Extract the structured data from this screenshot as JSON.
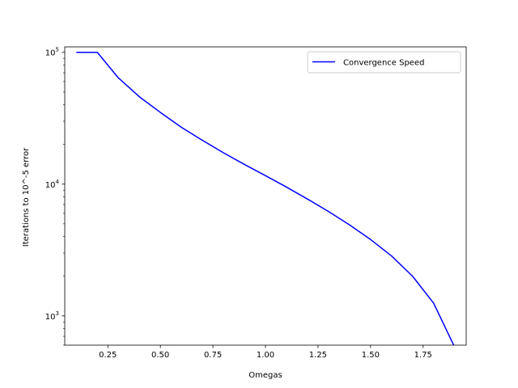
{
  "chart_data": {
    "type": "line",
    "title": "",
    "xlabel": "Omegas",
    "ylabel": "Iterations to 10^-5 error",
    "yscale": "log",
    "xlim": [
      0.045,
      1.955
    ],
    "ylim": [
      600,
      110000
    ],
    "x_ticks": [
      {
        "value": 0.25,
        "label": "0.25"
      },
      {
        "value": 0.5,
        "label": "0.50"
      },
      {
        "value": 0.75,
        "label": "0.75"
      },
      {
        "value": 1.0,
        "label": "1.00"
      },
      {
        "value": 1.25,
        "label": "1.25"
      },
      {
        "value": 1.5,
        "label": "1.50"
      },
      {
        "value": 1.75,
        "label": "1.75"
      }
    ],
    "y_ticks": [
      {
        "value": 1000,
        "base": "10",
        "exp": "3"
      },
      {
        "value": 10000,
        "base": "10",
        "exp": "4"
      },
      {
        "value": 100000,
        "base": "10",
        "exp": "5"
      }
    ],
    "grid": false,
    "legend": {
      "position": "upper right"
    },
    "series": [
      {
        "name": "Convergence Speed",
        "color": "#0000ff",
        "x": [
          0.1,
          0.2,
          0.3,
          0.4,
          0.5,
          0.6,
          0.7,
          0.8,
          0.9,
          1.0,
          1.1,
          1.2,
          1.3,
          1.4,
          1.5,
          1.6,
          1.7,
          1.8,
          1.9
        ],
        "y": [
          100000,
          100000,
          64000,
          46000,
          35000,
          27000,
          21500,
          17300,
          14100,
          11600,
          9500,
          7700,
          6200,
          4900,
          3800,
          2850,
          2000,
          1250,
          580
        ]
      }
    ]
  }
}
